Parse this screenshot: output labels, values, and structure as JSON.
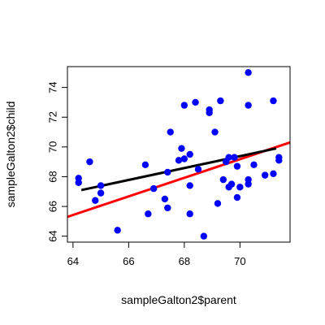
{
  "chart_data": {
    "type": "scatter",
    "title": "",
    "xlabel": "sampleGalton2$parent",
    "ylabel": "sampleGalton2$child",
    "xlim": [
      63.8,
      71.8
    ],
    "ylim": [
      63.6,
      75.4
    ],
    "x_ticks": [
      64,
      66,
      68,
      70
    ],
    "y_ticks": [
      64,
      66,
      68,
      70,
      72,
      74
    ],
    "grid": false,
    "legend": "none",
    "point_color": "#0000ff",
    "points": [
      {
        "x": 64.2,
        "y": 67.9
      },
      {
        "x": 64.2,
        "y": 67.6
      },
      {
        "x": 64.6,
        "y": 69.0
      },
      {
        "x": 64.8,
        "y": 66.4
      },
      {
        "x": 65.0,
        "y": 67.4
      },
      {
        "x": 65.0,
        "y": 66.9
      },
      {
        "x": 65.6,
        "y": 64.4
      },
      {
        "x": 66.6,
        "y": 68.8
      },
      {
        "x": 66.7,
        "y": 65.5
      },
      {
        "x": 66.9,
        "y": 67.2
      },
      {
        "x": 67.3,
        "y": 66.5
      },
      {
        "x": 67.4,
        "y": 65.9
      },
      {
        "x": 67.4,
        "y": 68.3
      },
      {
        "x": 67.5,
        "y": 71.0
      },
      {
        "x": 67.8,
        "y": 69.1
      },
      {
        "x": 67.9,
        "y": 69.9
      },
      {
        "x": 68.0,
        "y": 69.2
      },
      {
        "x": 68.0,
        "y": 72.8
      },
      {
        "x": 68.2,
        "y": 69.5
      },
      {
        "x": 68.2,
        "y": 67.4
      },
      {
        "x": 68.2,
        "y": 65.5
      },
      {
        "x": 68.4,
        "y": 73.0
      },
      {
        "x": 68.5,
        "y": 68.5
      },
      {
        "x": 68.7,
        "y": 64.0
      },
      {
        "x": 68.9,
        "y": 72.5
      },
      {
        "x": 68.9,
        "y": 72.3
      },
      {
        "x": 69.1,
        "y": 71.0
      },
      {
        "x": 69.2,
        "y": 66.2
      },
      {
        "x": 69.3,
        "y": 73.1
      },
      {
        "x": 69.4,
        "y": 67.8
      },
      {
        "x": 69.5,
        "y": 69.0
      },
      {
        "x": 69.6,
        "y": 69.3
      },
      {
        "x": 69.6,
        "y": 67.3
      },
      {
        "x": 69.7,
        "y": 67.5
      },
      {
        "x": 69.8,
        "y": 69.3
      },
      {
        "x": 69.9,
        "y": 66.6
      },
      {
        "x": 69.9,
        "y": 68.7
      },
      {
        "x": 70.0,
        "y": 67.3
      },
      {
        "x": 70.3,
        "y": 75.0
      },
      {
        "x": 70.3,
        "y": 72.8
      },
      {
        "x": 70.3,
        "y": 67.5
      },
      {
        "x": 70.3,
        "y": 67.8
      },
      {
        "x": 70.5,
        "y": 68.8
      },
      {
        "x": 70.9,
        "y": 68.1
      },
      {
        "x": 71.2,
        "y": 73.1
      },
      {
        "x": 71.2,
        "y": 68.2
      },
      {
        "x": 71.4,
        "y": 69.3
      },
      {
        "x": 71.4,
        "y": 69.1
      }
    ],
    "lines": [
      {
        "color": "#ff0000",
        "x": [
          63.8,
          71.8
        ],
        "y": [
          65.3,
          70.3
        ]
      },
      {
        "color": "#000000",
        "x": [
          64.3,
          71.3
        ],
        "y": [
          67.1,
          69.9
        ]
      }
    ]
  }
}
